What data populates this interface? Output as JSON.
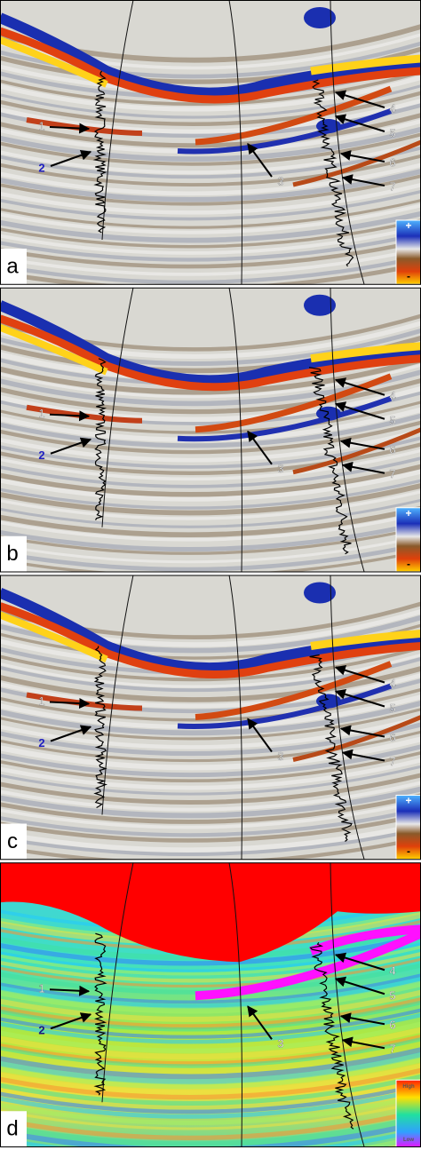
{
  "panels": [
    {
      "label": "a",
      "arrows": [
        "1",
        "2",
        "3",
        "4",
        "5",
        "6",
        "7"
      ],
      "scale": {
        "top": "+",
        "bottom": "-"
      }
    },
    {
      "label": "b",
      "arrows": [
        "1",
        "2",
        "3",
        "4",
        "5",
        "6",
        "7"
      ],
      "scale": {
        "top": "+",
        "bottom": "-"
      }
    },
    {
      "label": "c",
      "arrows": [
        "1",
        "2",
        "3",
        "4",
        "5",
        "6",
        "7"
      ],
      "scale": {
        "top": "+",
        "bottom": "-"
      }
    },
    {
      "label": "d",
      "arrows": [
        "1",
        "2",
        "3",
        "4",
        "5",
        "6",
        "7"
      ],
      "scale": {
        "top": "High",
        "bottom": "Low"
      }
    }
  ]
}
